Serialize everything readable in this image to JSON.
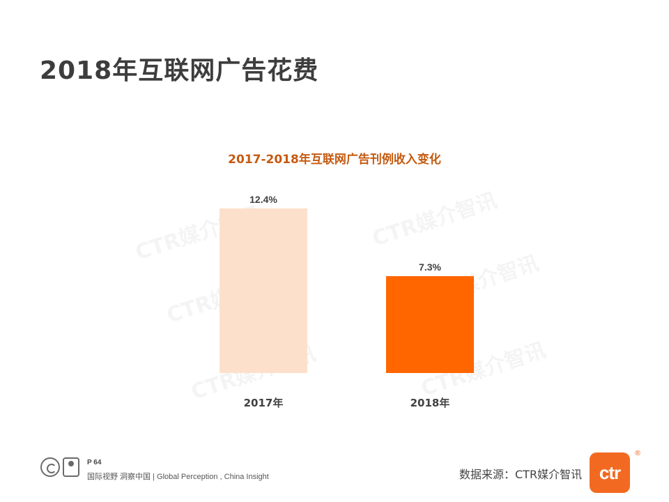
{
  "page": {
    "title": "2018年互联网广告花费",
    "page_number": "P 64",
    "tagline": "国际视野  洞察中国  |  Global Perception , China Insight",
    "source": "数据来源：CTR媒介智讯",
    "logo_text": "ctr",
    "logo_mark": "®",
    "watermark": "CTR媒介智讯"
  },
  "icons": [
    "certification-badge-icon",
    "person-badge-icon"
  ],
  "chart_data": {
    "type": "bar",
    "title": "2017-2018年互联网广告刊例收入变化",
    "categories": [
      "2017年",
      "2018年"
    ],
    "values": [
      12.4,
      7.3
    ],
    "value_labels": [
      "12.4%",
      "7.3%"
    ],
    "unit": "%",
    "ylim": [
      0,
      12.4
    ],
    "grid": false,
    "colors": [
      "#fde0cc",
      "#ff6600"
    ],
    "title_color": "#c55a11"
  }
}
